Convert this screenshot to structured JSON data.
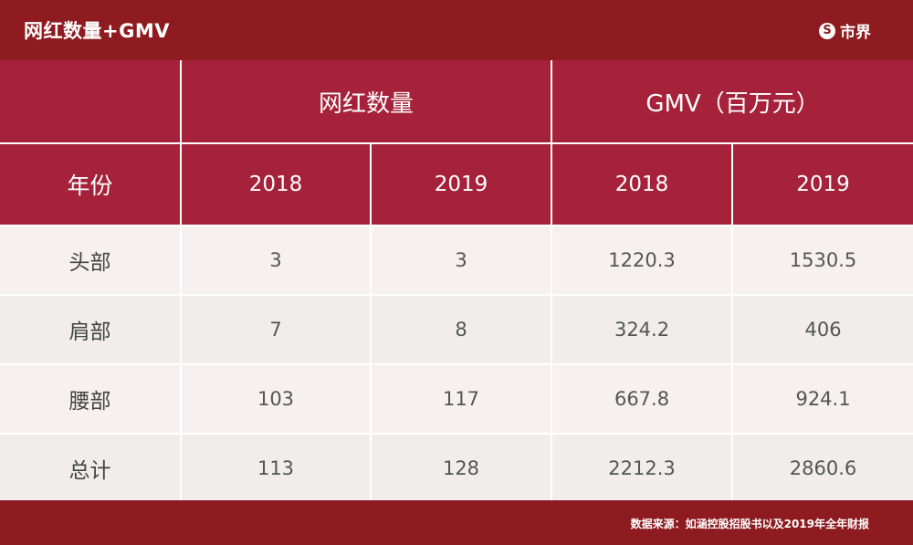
{
  "header": {
    "title": "网红数量+GMV",
    "brand_name": "市界",
    "brand_icon": "S"
  },
  "colors": {
    "background": "#8e1b20",
    "header_cell": "#a5223a",
    "body_cell": "#f7f0f0"
  },
  "chart_data": {
    "type": "table",
    "group_headers": [
      "网红数量",
      "GMV（百万元）"
    ],
    "row_header_label": "年份",
    "years": [
      "2018",
      "2019",
      "2018",
      "2019"
    ],
    "rows": [
      {
        "label": "头部",
        "values": [
          "3",
          "3",
          "1220.3",
          "1530.5"
        ]
      },
      {
        "label": "肩部",
        "values": [
          "7",
          "8",
          "324.2",
          "406"
        ]
      },
      {
        "label": "腰部",
        "values": [
          "103",
          "117",
          "667.8",
          "924.1"
        ]
      },
      {
        "label": "总计",
        "values": [
          "113",
          "128",
          "2212.3",
          "2860.6"
        ]
      }
    ]
  },
  "footer": {
    "source": "数据来源：如涵控股招股书以及2019年全年财报"
  }
}
